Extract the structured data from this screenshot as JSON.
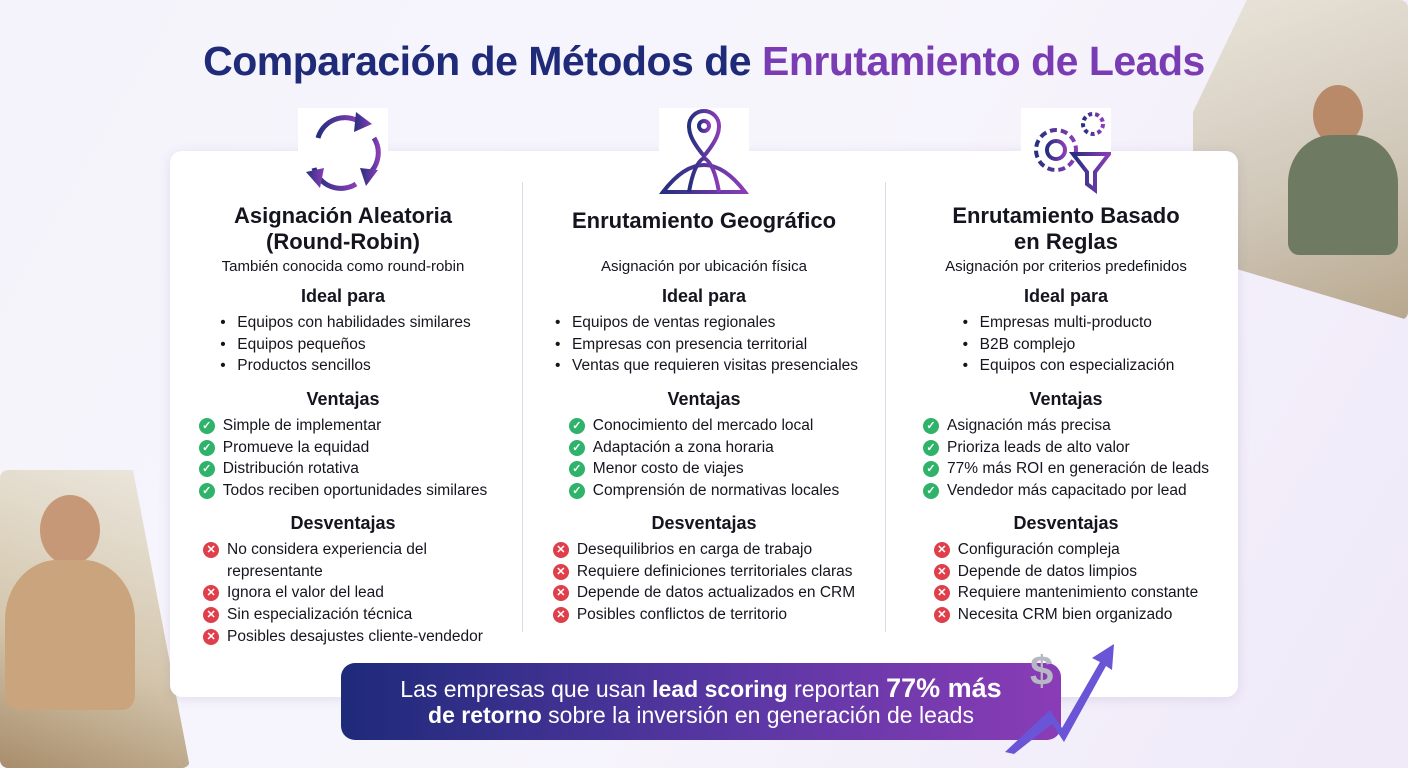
{
  "title": {
    "part1": "Comparación de Métodos de ",
    "part2": "Enrutamiento de Leads"
  },
  "colors": {
    "title_navy": "#1f2a78",
    "title_purple": "#7a3cb3",
    "check": "#2fb36a",
    "cross": "#de3f4b"
  },
  "columns": [
    {
      "icon": "cycle-arrows-icon",
      "title": "Asignación Aleatoria (Round-Robin)",
      "title_line1": "Asignación Aleatoria",
      "title_line2": "(Round-Robin)",
      "subtitle": "También conocida como round-robin",
      "ideal_heading": "Ideal para",
      "ideal": [
        "Equipos con habilidades similares",
        "Equipos pequeños",
        "Productos sencillos"
      ],
      "pros_heading": "Ventajas",
      "pros": [
        "Simple de implementar",
        "Promueve la equidad",
        "Distribución rotativa",
        "Todos reciben oportunidades similares"
      ],
      "cons_heading": "Desventajas",
      "cons": [
        "No considera experiencia del representante",
        "Ignora el valor del lead",
        "Sin especialización técnica",
        "Posibles desajustes cliente-vendedor"
      ]
    },
    {
      "icon": "map-pin-globe-icon",
      "title_line1": "Enrutamiento Geográfico",
      "title_line2": "",
      "subtitle": "Asignación por ubicación física",
      "ideal_heading": "Ideal para",
      "ideal": [
        "Equipos de ventas regionales",
        "Empresas con presencia territorial",
        "Ventas que requieren visitas presenciales"
      ],
      "pros_heading": "Ventajas",
      "pros": [
        "Conocimiento del mercado local",
        "Adaptación a zona horaria",
        "Menor costo de viajes",
        "Comprensión de normativas locales"
      ],
      "cons_heading": "Desventajas",
      "cons": [
        "Desequilibrios en carga de trabajo",
        "Requiere definiciones territoriales claras",
        "Depende de datos actualizados en CRM",
        "Posibles conflictos de territorio"
      ]
    },
    {
      "icon": "gears-filter-icon",
      "title_line1": "Enrutamiento Basado",
      "title_line2": "en Reglas",
      "subtitle": "Asignación por criterios predefinidos",
      "ideal_heading": "Ideal para",
      "ideal": [
        "Empresas multi-producto",
        "B2B complejo",
        "Equipos con especialización"
      ],
      "pros_heading": "Ventajas",
      "pros": [
        "Asignación más precisa",
        "Prioriza leads de alto valor",
        "77% más ROI en generación de leads",
        "Vendedor más capacitado por lead"
      ],
      "cons_heading": "Desventajas",
      "cons": [
        "Configuración compleja",
        "Depende de datos limpios",
        "Requiere mantenimiento constante",
        "Necesita CRM bien organizado"
      ]
    }
  ],
  "banner": {
    "t1": "Las empresas que usan ",
    "t2": "lead scoring",
    "t3": " reportan ",
    "t4": "77% más",
    "t5": "de retorno",
    "t6": " sobre la inversión en generación de leads"
  }
}
